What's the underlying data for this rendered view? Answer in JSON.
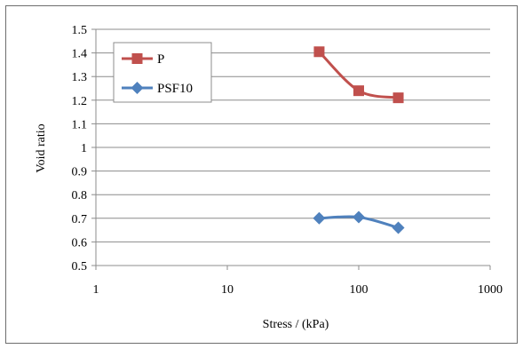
{
  "chart_data": {
    "type": "line",
    "x_scale": "log",
    "xlabel": "Stress / (kPa)",
    "ylabel": "Void ratio",
    "xlim": [
      1,
      1000
    ],
    "ylim": [
      0.5,
      1.5
    ],
    "x_ticks": [
      "1",
      "10",
      "100",
      "1000"
    ],
    "y_ticks": [
      "0.5",
      "0.6",
      "0.7",
      "0.8",
      "0.9",
      "1",
      "1.1",
      "1.2",
      "1.3",
      "1.4",
      "1.5"
    ],
    "grid": "horizontal",
    "legend_position": "top-left",
    "series": [
      {
        "name": "P",
        "color": "#c0504d",
        "marker": "square",
        "x": [
          50,
          100,
          200
        ],
        "y": [
          1.405,
          1.24,
          1.21
        ]
      },
      {
        "name": "PSF10",
        "color": "#4f81bd",
        "marker": "diamond",
        "x": [
          50,
          100,
          200
        ],
        "y": [
          0.7,
          0.705,
          0.66
        ]
      }
    ]
  }
}
